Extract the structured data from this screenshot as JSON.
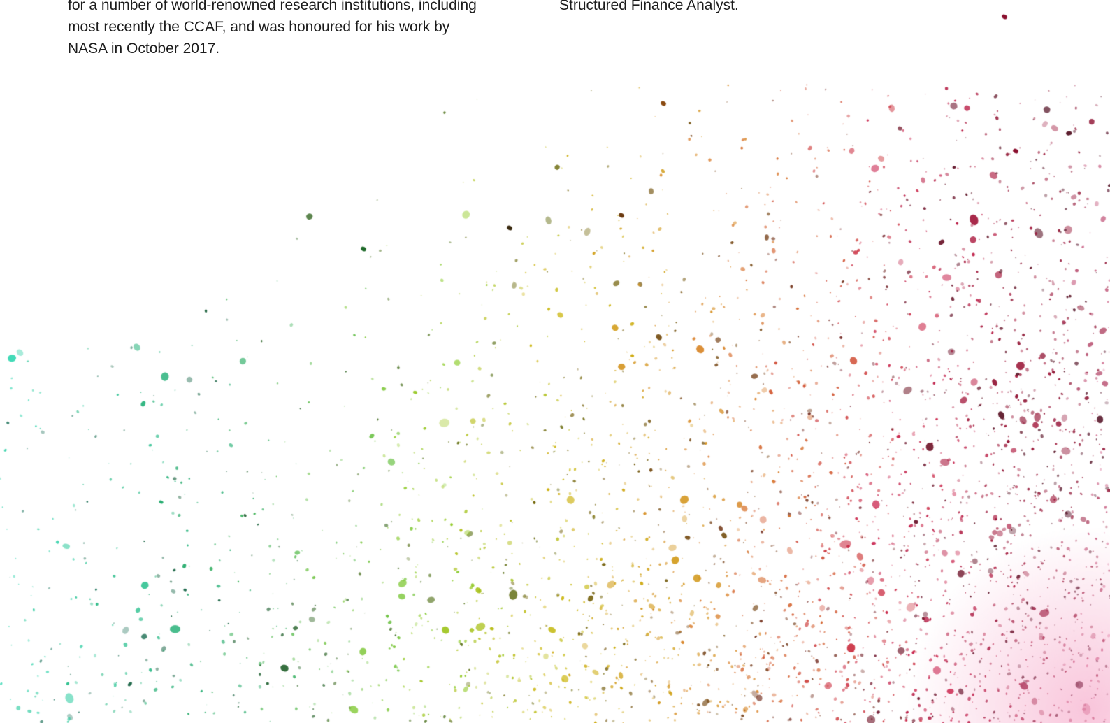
{
  "left_column": {
    "lines": [
      "for a number of world-renowned research institutions, including",
      "most recently the CCAF, and was honoured for his work by",
      "NASA in October 2017."
    ]
  },
  "right_column": {
    "lines": [
      "Structured Finance Analyst."
    ]
  },
  "artwork": {
    "description_icon": "paint-splatter-icon",
    "gradient_colors": [
      "#2fd6b0",
      "#1fa86a",
      "#8ccc2a",
      "#c8b200",
      "#d9822a",
      "#c81e4a",
      "#8a0f2e",
      "#f49ac0"
    ]
  }
}
